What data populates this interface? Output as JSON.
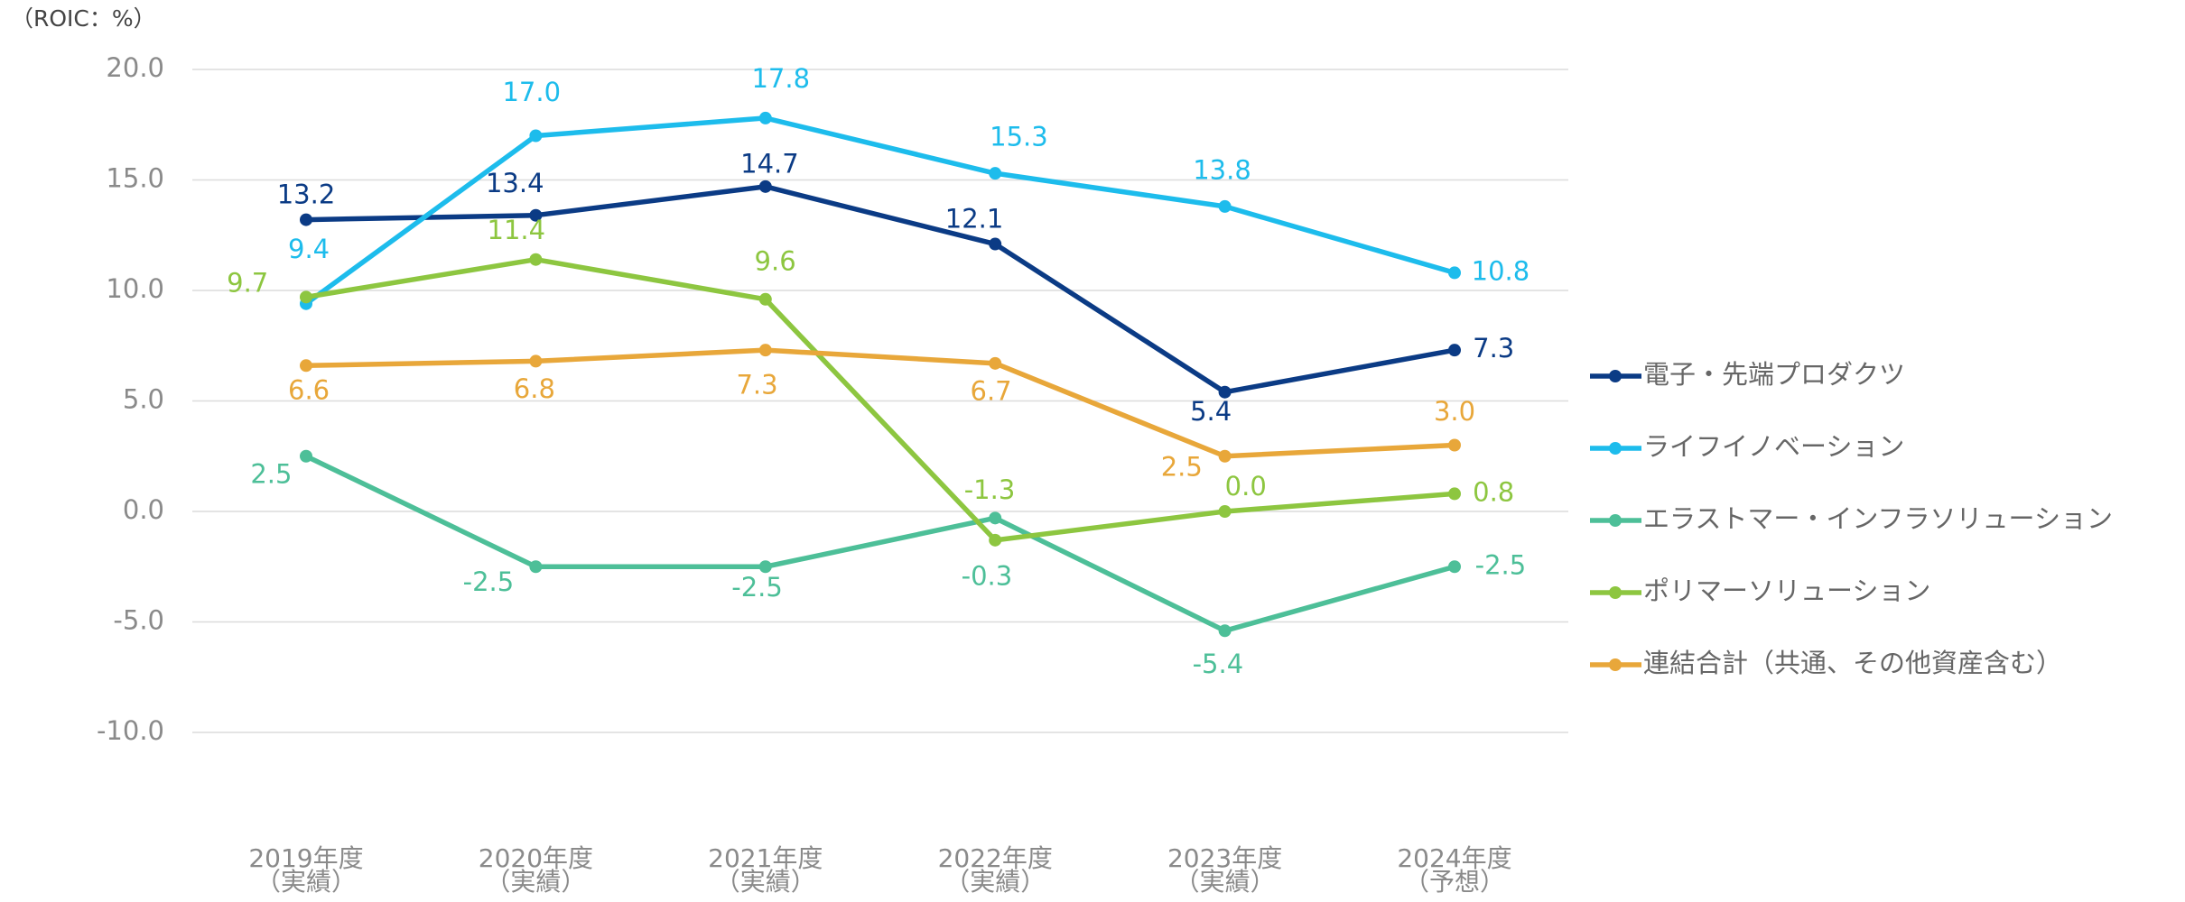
{
  "chart_data": {
    "type": "line",
    "y_axis_label": "（ROIC：%）",
    "categories": [
      [
        "2019年度",
        "（実績）"
      ],
      [
        "2020年度",
        "（実績）"
      ],
      [
        "2021年度",
        "（実績）"
      ],
      [
        "2022年度",
        "（実績）"
      ],
      [
        "2023年度",
        "（実績）"
      ],
      [
        "2024年度",
        "（予想）"
      ]
    ],
    "ylim": [
      -10,
      20
    ],
    "yticks": [
      {
        "value": 20,
        "label": "20.0"
      },
      {
        "value": 15,
        "label": "15.0"
      },
      {
        "value": 10,
        "label": "10.0"
      },
      {
        "value": 5,
        "label": "5.0"
      },
      {
        "value": 0,
        "label": "0.0"
      },
      {
        "value": -5,
        "label": "-5.0"
      },
      {
        "value": -10,
        "label": "-10.0"
      }
    ],
    "grid": true,
    "legend": "right",
    "series": [
      {
        "name": "電子・先端プロダクツ",
        "color": "#0b3b85",
        "values": [
          13.2,
          13.4,
          14.7,
          12.1,
          5.4,
          7.3
        ],
        "value_labels": [
          "13.2",
          "13.4",
          "14.7",
          "12.1",
          "5.4",
          "7.3"
        ]
      },
      {
        "name": "ライフイノベーション",
        "color": "#1dbcec",
        "values": [
          9.4,
          17.0,
          17.8,
          15.3,
          13.8,
          10.8
        ],
        "value_labels": [
          "9.4",
          "17.0",
          "17.8",
          "15.3",
          "13.8",
          "10.8"
        ]
      },
      {
        "name": "エラストマー・インフラソリューション",
        "color": "#4dbf98",
        "values": [
          2.5,
          -2.5,
          -2.5,
          -0.3,
          -5.4,
          -2.5
        ],
        "value_labels": [
          "2.5",
          "-2.5",
          "-2.5",
          "-0.3",
          "-5.4",
          "-2.5"
        ]
      },
      {
        "name": "ポリマーソリューション",
        "color": "#8dc640",
        "values": [
          9.7,
          11.4,
          9.6,
          -1.3,
          0.0,
          0.8
        ],
        "value_labels": [
          "9.7",
          "11.4",
          "9.6",
          "-1.3",
          "0.0",
          "0.8"
        ]
      },
      {
        "name": "連結合計（共通、その他資産含む）",
        "color": "#e8a73a",
        "values": [
          6.6,
          6.8,
          7.3,
          6.7,
          2.5,
          3.0
        ],
        "value_labels": [
          "6.6",
          "6.8",
          "7.3",
          "6.7",
          "2.5",
          "3.0"
        ]
      }
    ]
  }
}
